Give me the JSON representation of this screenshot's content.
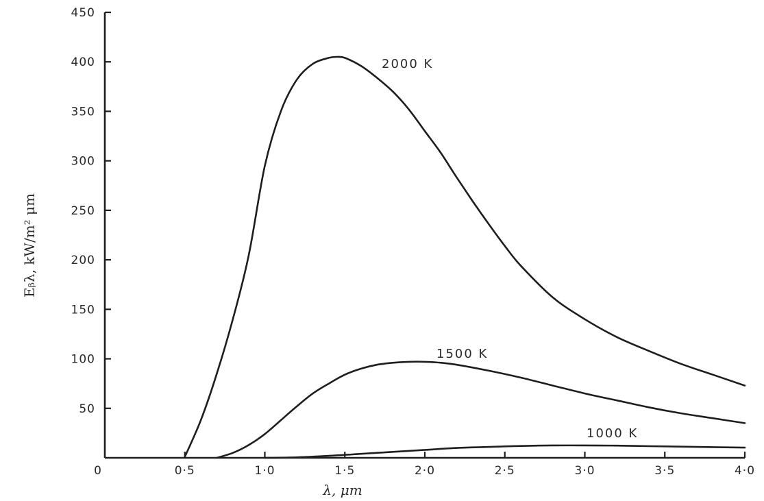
{
  "chart_data": {
    "type": "line",
    "title": "",
    "xlabel": "λ, μm",
    "ylabel": "Eᵦλ, kW/m² μm",
    "xlim": [
      0,
      4.0
    ],
    "ylim": [
      0,
      450
    ],
    "x_ticks": [
      0.5,
      1.0,
      1.5,
      2.0,
      2.5,
      3.0,
      3.5,
      4.0
    ],
    "x_tick_labels": [
      "0·5",
      "1·0",
      "1·5",
      "2·0",
      "2·5",
      "3·0",
      "3·5",
      "4·0"
    ],
    "origin_label": "0",
    "y_ticks": [
      50,
      100,
      150,
      200,
      250,
      300,
      350,
      400,
      450
    ],
    "y_tick_labels": [
      "50",
      "100",
      "150",
      "200",
      "250",
      "300",
      "350",
      "400",
      "450"
    ],
    "grid": false,
    "legend": "none",
    "series": [
      {
        "name": "2000 K",
        "x": [
          0.5,
          0.6,
          0.7,
          0.8,
          0.9,
          1.0,
          1.1,
          1.2,
          1.3,
          1.4,
          1.45,
          1.5,
          1.6,
          1.7,
          1.8,
          1.9,
          2.0,
          2.1,
          2.2,
          2.3,
          2.4,
          2.5,
          2.6,
          2.8,
          3.0,
          3.2,
          3.4,
          3.6,
          3.8,
          4.0
        ],
        "y": [
          1,
          38,
          85,
          140,
          205,
          295,
          350,
          382,
          398,
          404,
          405,
          404,
          396,
          384,
          370,
          352,
          330,
          308,
          283,
          259,
          236,
          214,
          194,
          162,
          140,
          122,
          108,
          95,
          84,
          73
        ]
      },
      {
        "name": "1500 K",
        "x": [
          0.7,
          0.8,
          0.9,
          1.0,
          1.1,
          1.2,
          1.3,
          1.4,
          1.5,
          1.6,
          1.7,
          1.8,
          1.9,
          2.0,
          2.1,
          2.2,
          2.4,
          2.6,
          2.8,
          3.0,
          3.2,
          3.4,
          3.6,
          3.8,
          4.0
        ],
        "y": [
          0,
          5,
          13,
          24,
          38,
          52,
          65,
          75,
          84,
          90,
          94,
          96,
          97,
          97,
          96,
          94,
          88,
          81,
          73,
          65,
          58,
          51,
          45,
          40,
          35
        ]
      },
      {
        "name": "1000 K",
        "x": [
          1.0,
          1.2,
          1.4,
          1.6,
          1.8,
          2.0,
          2.2,
          2.4,
          2.6,
          2.8,
          3.0,
          3.2,
          3.4,
          3.6,
          3.8,
          4.0
        ],
        "y": [
          0,
          0.5,
          2,
          4,
          6,
          8,
          10,
          11,
          12,
          12.5,
          12.5,
          12.3,
          11.8,
          11.3,
          10.8,
          10.3
        ]
      }
    ]
  }
}
